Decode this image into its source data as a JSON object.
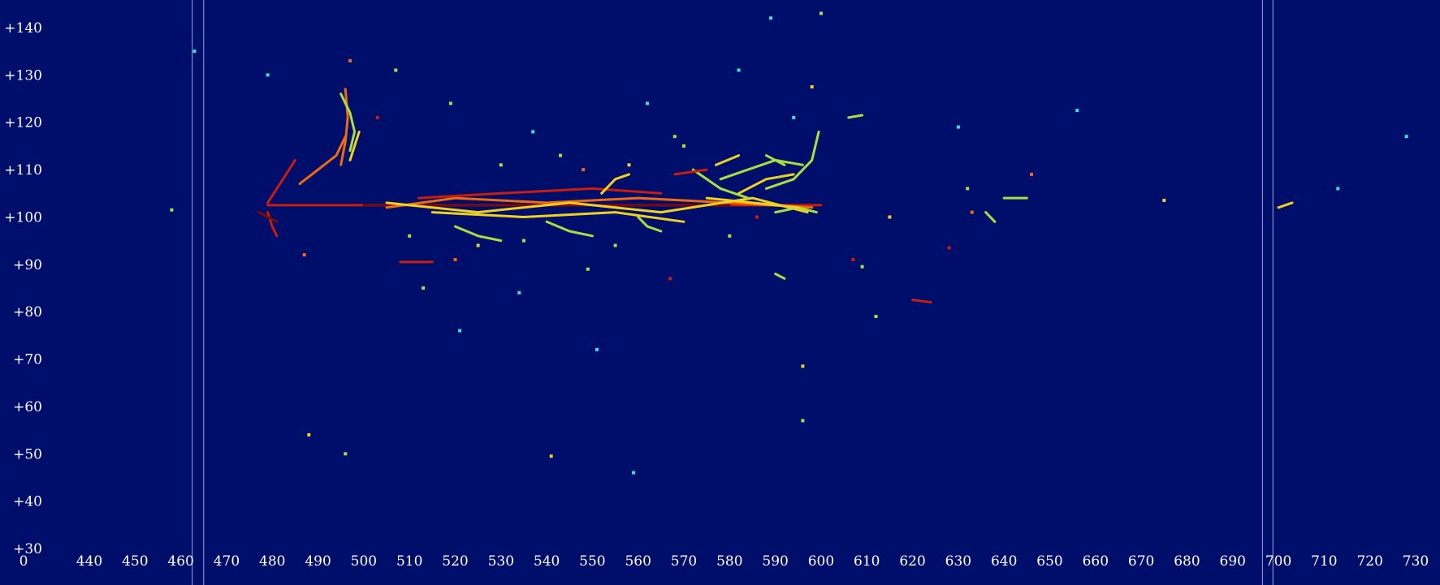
{
  "colors": {
    "background": "#000e6b",
    "frame_line": "#9aa4d8",
    "text": "#ffffff",
    "palette": [
      "#28b4d8",
      "#40e0d0",
      "#a8e040",
      "#f0d020",
      "#f06a10",
      "#c81e0a",
      "#7a0a0a"
    ]
  },
  "chart_data": {
    "type": "heatmap",
    "title": "",
    "xlabel": "",
    "ylabel": "",
    "colormap": "jet",
    "xlim": [
      434,
      737
    ],
    "ylim": [
      29,
      146
    ],
    "x_ticks": [
      440,
      450,
      460,
      470,
      480,
      490,
      500,
      510,
      520,
      530,
      540,
      550,
      560,
      570,
      580,
      590,
      600,
      610,
      620,
      630,
      640,
      650,
      660,
      670,
      680,
      690,
      700,
      710,
      720,
      730
    ],
    "x_tick_labels": [
      "440",
      "450",
      "460",
      "470",
      "480",
      "490",
      "500",
      "510",
      "520",
      "530",
      "540",
      "550",
      "560",
      "570",
      "580",
      "590",
      "600",
      "610",
      "620",
      "630",
      "640",
      "650",
      "660",
      "670",
      "680",
      "690",
      "700",
      "710",
      "720",
      "730"
    ],
    "corner_label": "0",
    "y_ticks": [
      140,
      130,
      120,
      110,
      100,
      90,
      80,
      70,
      60,
      50,
      40,
      30
    ],
    "y_tick_labels": [
      "+140",
      "+130",
      "+120",
      "+110",
      "+100",
      "+90",
      "+80",
      "+70",
      "+60",
      "+50",
      "+40",
      "+30"
    ],
    "vertical_markers": [
      462.5,
      465,
      696.5,
      698.8
    ],
    "tracks": [
      {
        "points": [
          [
            479,
            102.5
          ],
          [
            600,
            102.5
          ]
        ],
        "intensity": 5
      },
      {
        "points": [
          [
            500,
            102.5
          ],
          [
            540,
            102.5
          ],
          [
            580,
            102.5
          ]
        ],
        "intensity": 6
      },
      {
        "points": [
          [
            505,
            102
          ],
          [
            520,
            104
          ],
          [
            540,
            103
          ],
          [
            560,
            104
          ],
          [
            580,
            103
          ],
          [
            598,
            102
          ]
        ],
        "intensity": 4
      },
      {
        "points": [
          [
            505,
            103
          ],
          [
            525,
            101
          ],
          [
            545,
            103
          ],
          [
            565,
            101
          ],
          [
            585,
            104
          ],
          [
            597,
            101
          ]
        ],
        "intensity": 3
      },
      {
        "points": [
          [
            512,
            104
          ],
          [
            530,
            105
          ],
          [
            550,
            106
          ],
          [
            565,
            105
          ]
        ],
        "intensity": 5
      },
      {
        "points": [
          [
            515,
            101
          ],
          [
            535,
            100
          ],
          [
            555,
            101
          ],
          [
            570,
            99
          ]
        ],
        "intensity": 3
      },
      {
        "points": [
          [
            486,
            107
          ],
          [
            490,
            110
          ],
          [
            494,
            113
          ],
          [
            496,
            117
          ]
        ],
        "intensity": 4
      },
      {
        "points": [
          [
            479,
            103
          ],
          [
            481,
            106
          ],
          [
            483,
            109
          ],
          [
            485,
            112
          ]
        ],
        "intensity": 5
      },
      {
        "points": [
          [
            495,
            111
          ],
          [
            496,
            116
          ],
          [
            496.5,
            121
          ],
          [
            496,
            127
          ]
        ],
        "intensity": 4
      },
      {
        "points": [
          [
            495,
            126
          ],
          [
            497,
            122
          ],
          [
            498,
            118
          ],
          [
            497,
            114
          ]
        ],
        "intensity": 2
      },
      {
        "points": [
          [
            497,
            112
          ],
          [
            499,
            118
          ]
        ],
        "intensity": 3
      },
      {
        "points": [
          [
            479,
            101
          ],
          [
            480,
            98
          ],
          [
            481,
            96
          ]
        ],
        "intensity": 5
      },
      {
        "points": [
          [
            477,
            101
          ],
          [
            479,
            100
          ],
          [
            481,
            99
          ]
        ],
        "intensity": 6
      },
      {
        "points": [
          [
            588,
            106
          ],
          [
            594,
            108
          ],
          [
            598,
            112
          ],
          [
            599.5,
            118
          ]
        ],
        "intensity": 2
      },
      {
        "points": [
          [
            572,
            110
          ],
          [
            578,
            106
          ],
          [
            584,
            104
          ]
        ],
        "intensity": 2
      },
      {
        "points": [
          [
            578,
            108
          ],
          [
            584,
            110
          ],
          [
            590,
            112
          ],
          [
            596,
            111
          ]
        ],
        "intensity": 2
      },
      {
        "points": [
          [
            582,
            105
          ],
          [
            588,
            108
          ],
          [
            594,
            109
          ]
        ],
        "intensity": 3
      },
      {
        "points": [
          [
            568,
            109
          ],
          [
            575,
            110
          ]
        ],
        "intensity": 5
      },
      {
        "points": [
          [
            577,
            111
          ],
          [
            582,
            113
          ]
        ],
        "intensity": 3
      },
      {
        "points": [
          [
            588,
            113
          ],
          [
            592,
            111
          ]
        ],
        "intensity": 2
      },
      {
        "points": [
          [
            590,
            101
          ],
          [
            595,
            102
          ],
          [
            599,
            101
          ]
        ],
        "intensity": 2
      },
      {
        "points": [
          [
            575,
            104
          ],
          [
            585,
            103
          ],
          [
            595,
            102
          ]
        ],
        "intensity": 3
      },
      {
        "points": [
          [
            520,
            98
          ],
          [
            525,
            96
          ],
          [
            530,
            95
          ]
        ],
        "intensity": 2
      },
      {
        "points": [
          [
            540,
            99
          ],
          [
            545,
            97
          ],
          [
            550,
            96
          ]
        ],
        "intensity": 2
      },
      {
        "points": [
          [
            552,
            105
          ],
          [
            555,
            108
          ],
          [
            558,
            109
          ]
        ],
        "intensity": 3
      },
      {
        "points": [
          [
            560,
            100
          ],
          [
            562,
            98
          ],
          [
            565,
            97
          ]
        ],
        "intensity": 2
      },
      {
        "points": [
          [
            508,
            90.5
          ],
          [
            515,
            90.5
          ]
        ],
        "intensity": 5
      },
      {
        "points": [
          [
            620,
            82.5
          ],
          [
            624,
            82
          ]
        ],
        "intensity": 5
      },
      {
        "points": [
          [
            640,
            104
          ],
          [
            645,
            104
          ]
        ],
        "intensity": 2
      },
      {
        "points": [
          [
            636,
            101
          ],
          [
            638,
            99
          ]
        ],
        "intensity": 2
      },
      {
        "points": [
          [
            700,
            102
          ],
          [
            703,
            103
          ]
        ],
        "intensity": 3
      },
      {
        "points": [
          [
            590,
            88
          ],
          [
            592,
            87
          ]
        ],
        "intensity": 2
      },
      {
        "points": [
          [
            606,
            121
          ],
          [
            609,
            121.5
          ]
        ],
        "intensity": 2
      }
    ],
    "points": [
      {
        "x": 458,
        "y": 101.5,
        "intensity": 2
      },
      {
        "x": 463,
        "y": 135,
        "intensity": 1
      },
      {
        "x": 479,
        "y": 130,
        "intensity": 1
      },
      {
        "x": 487,
        "y": 92,
        "intensity": 4
      },
      {
        "x": 488,
        "y": 54,
        "intensity": 3
      },
      {
        "x": 496,
        "y": 50,
        "intensity": 2
      },
      {
        "x": 497,
        "y": 133,
        "intensity": 4
      },
      {
        "x": 503,
        "y": 121,
        "intensity": 5
      },
      {
        "x": 507,
        "y": 131,
        "intensity": 2
      },
      {
        "x": 513,
        "y": 85,
        "intensity": 2
      },
      {
        "x": 519,
        "y": 124,
        "intensity": 2
      },
      {
        "x": 520,
        "y": 91,
        "intensity": 4
      },
      {
        "x": 521,
        "y": 76,
        "intensity": 1
      },
      {
        "x": 534,
        "y": 84,
        "intensity": 1
      },
      {
        "x": 537,
        "y": 118,
        "intensity": 1
      },
      {
        "x": 541,
        "y": 49.5,
        "intensity": 3
      },
      {
        "x": 549,
        "y": 89,
        "intensity": 2
      },
      {
        "x": 551,
        "y": 72,
        "intensity": 1
      },
      {
        "x": 559,
        "y": 46,
        "intensity": 1
      },
      {
        "x": 562,
        "y": 124,
        "intensity": 1
      },
      {
        "x": 567,
        "y": 87,
        "intensity": 5
      },
      {
        "x": 568,
        "y": 117,
        "intensity": 2
      },
      {
        "x": 580,
        "y": 96,
        "intensity": 2
      },
      {
        "x": 582,
        "y": 131,
        "intensity": 1
      },
      {
        "x": 589,
        "y": 142,
        "intensity": 1
      },
      {
        "x": 594,
        "y": 121,
        "intensity": 1
      },
      {
        "x": 596,
        "y": 57,
        "intensity": 2
      },
      {
        "x": 596,
        "y": 68.5,
        "intensity": 3
      },
      {
        "x": 598,
        "y": 127.5,
        "intensity": 3
      },
      {
        "x": 600,
        "y": 143,
        "intensity": 2
      },
      {
        "x": 607,
        "y": 91,
        "intensity": 5
      },
      {
        "x": 609,
        "y": 89.5,
        "intensity": 2
      },
      {
        "x": 612,
        "y": 79,
        "intensity": 2
      },
      {
        "x": 615,
        "y": 100,
        "intensity": 3
      },
      {
        "x": 628,
        "y": 93.5,
        "intensity": 5
      },
      {
        "x": 630,
        "y": 119,
        "intensity": 1
      },
      {
        "x": 632,
        "y": 106,
        "intensity": 2
      },
      {
        "x": 633,
        "y": 101,
        "intensity": 4
      },
      {
        "x": 646,
        "y": 109,
        "intensity": 4
      },
      {
        "x": 656,
        "y": 122.5,
        "intensity": 1
      },
      {
        "x": 675,
        "y": 103.5,
        "intensity": 3
      },
      {
        "x": 713,
        "y": 106,
        "intensity": 1
      },
      {
        "x": 728,
        "y": 117,
        "intensity": 1
      },
      {
        "x": 543,
        "y": 113,
        "intensity": 2
      },
      {
        "x": 530,
        "y": 111,
        "intensity": 2
      },
      {
        "x": 548,
        "y": 110,
        "intensity": 4
      },
      {
        "x": 558,
        "y": 111,
        "intensity": 3
      },
      {
        "x": 570,
        "y": 115,
        "intensity": 2
      },
      {
        "x": 510,
        "y": 96,
        "intensity": 2
      },
      {
        "x": 525,
        "y": 94,
        "intensity": 3
      },
      {
        "x": 535,
        "y": 95,
        "intensity": 2
      },
      {
        "x": 555,
        "y": 94,
        "intensity": 2
      },
      {
        "x": 586,
        "y": 100,
        "intensity": 5
      }
    ]
  }
}
